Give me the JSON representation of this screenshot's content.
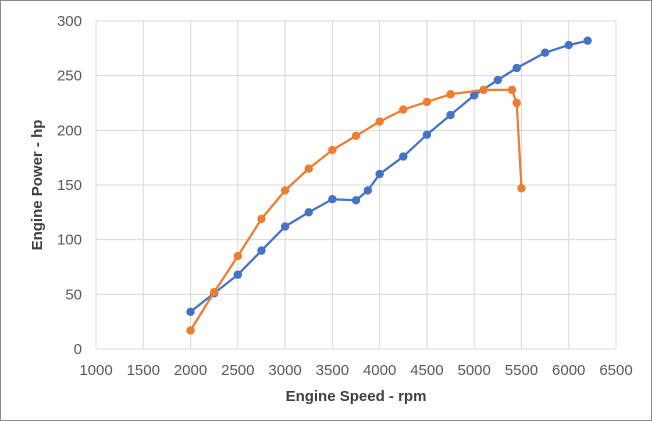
{
  "chart_data": {
    "type": "scatter",
    "title": "",
    "xlabel": "Engine Speed - rpm",
    "ylabel": "Engine Power - hp",
    "xlim": [
      1000,
      6500
    ],
    "ylim": [
      0,
      300
    ],
    "xticks": [
      1000,
      1500,
      2000,
      2500,
      3000,
      3500,
      4000,
      4500,
      5000,
      5500,
      6000,
      6500
    ],
    "yticks": [
      0,
      50,
      100,
      150,
      200,
      250,
      300
    ],
    "grid": true,
    "legend": "none",
    "series": [
      {
        "color": "#4472c4",
        "x": [
          2000,
          2250,
          2500,
          2750,
          3000,
          3250,
          3500,
          3750,
          3875,
          4000,
          4250,
          4500,
          4750,
          5000,
          5250,
          5450,
          5750,
          6000,
          6200
        ],
        "y": [
          34,
          51,
          68,
          90,
          112,
          125,
          137,
          136,
          145,
          160,
          176,
          196,
          214,
          232,
          246,
          257,
          271,
          278,
          282
        ]
      },
      {
        "color": "#ed7d31",
        "x": [
          2000,
          2250,
          2500,
          2750,
          3000,
          3250,
          3500,
          3750,
          4000,
          4250,
          4500,
          4750,
          5100,
          5400,
          5450,
          5500
        ],
        "y": [
          17,
          52,
          85,
          119,
          145,
          165,
          182,
          195,
          208,
          219,
          226,
          233,
          237,
          237,
          225,
          147
        ]
      }
    ]
  }
}
